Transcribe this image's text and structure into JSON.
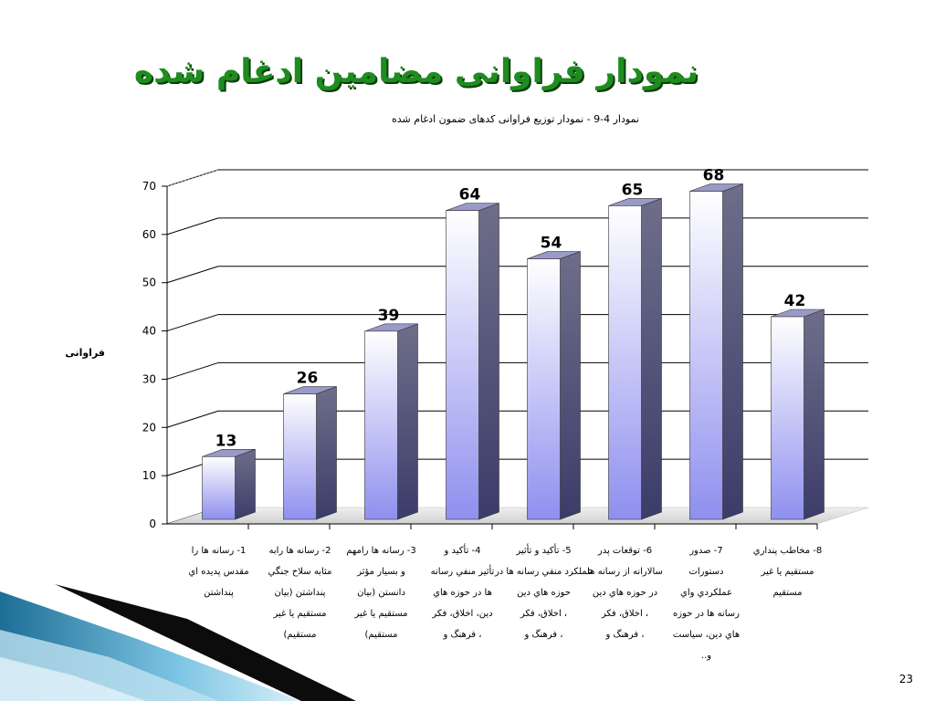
{
  "slide": {
    "title": "نمودار فراوانی مضامین ادغام شده",
    "caption": "نمودار 4-9 - نمودار توزیع فراوانی کدهای ضمون ادغام شده",
    "page_number": "23"
  },
  "colors": {
    "title": "#1e8c1e",
    "bar_top": "#ffffff",
    "bar_bottom": "#8f8fef",
    "bar_side": "#4a4a78",
    "gridline": "#000000"
  },
  "chart_data": {
    "type": "bar",
    "style": "3d-column",
    "ylabel": "فراوانی",
    "xlabel": "",
    "ylim": [
      0,
      70
    ],
    "yticks": [
      0,
      10,
      20,
      30,
      40,
      50,
      60,
      70
    ],
    "grid": true,
    "legend": "none",
    "categories": [
      [
        "1- رسانه ها را",
        "مقدس پديده اي",
        "پنداشتن"
      ],
      [
        "2- رسانه ها رابه",
        "مثابه سلاح جنگي",
        "پنداشتن (بيان",
        "مستقيم يا غير",
        "مستقيم)"
      ],
      [
        "3- رسانه ها رامهم",
        "و بسيار مؤثر",
        "دانستن (بيان",
        "مستقيم يا غير",
        "مستقيم)"
      ],
      [
        "4- تأكيد و",
        "تأثير منفي رسانه",
        "ها در حوزه هاي",
        "دين، اخلاق، فكر",
        "، فرهنگ و"
      ],
      [
        "5- تأكيد و تأثير",
        "عملكرد منفي رسانه ها در",
        "حوزه هاي دين",
        "، اخلاق، فكر",
        "، فرهنگ و"
      ],
      [
        "6- توقعات پدر",
        "سالارانه از رسانه ها",
        "در حوزه هاي دين",
        "، اخلاق، فكر",
        "، فرهنگ و"
      ],
      [
        "7- صدور",
        "دستورات",
        "عملكردي واي",
        "رسانه ها در حوزه",
        "هاي دين، سياست",
        "و.."
      ],
      [
        "8- مخاطب پنداري",
        "مستقيم يا غير",
        "مستقيم"
      ]
    ],
    "values": [
      13,
      26,
      39,
      64,
      54,
      65,
      68,
      42
    ]
  }
}
